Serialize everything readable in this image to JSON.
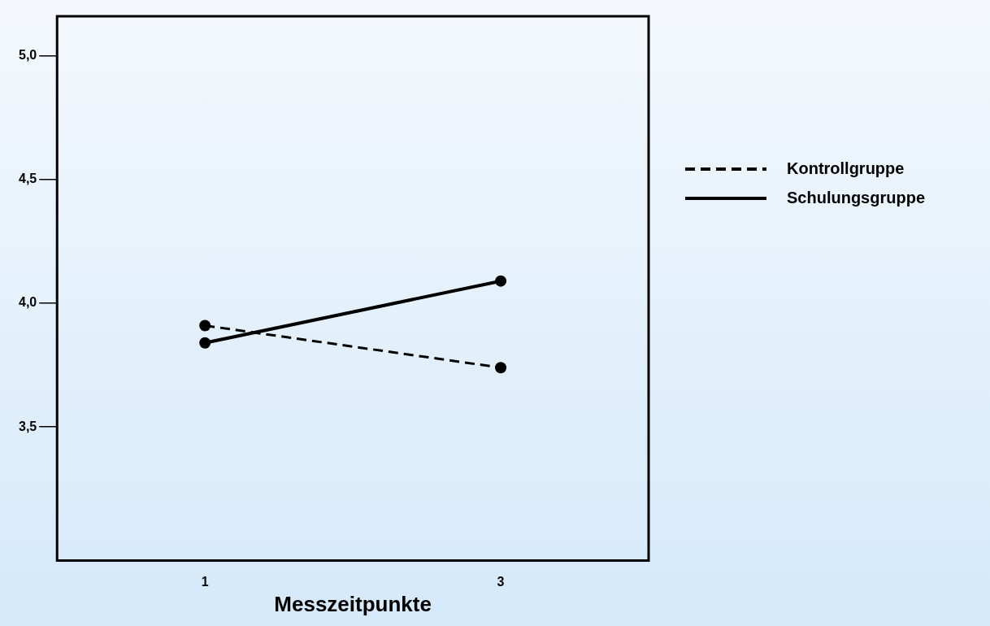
{
  "chart_data": {
    "type": "line",
    "xlabel": "Messzeitpunkte",
    "categories": [
      "1",
      "3"
    ],
    "series": [
      {
        "name": "Kontrollgruppe",
        "color": "#000000",
        "values": [
          3.91,
          3.74
        ],
        "line_style": "dashed"
      },
      {
        "name": "Schulungsgruppe",
        "color": "#000000",
        "values": [
          3.84,
          4.09
        ],
        "line_style": "solid"
      }
    ],
    "ylim": [
      2.96,
      5.16
    ],
    "yticks": [
      {
        "value": 3.5,
        "label": "3,5"
      },
      {
        "value": 4,
        "label": "4,0"
      },
      {
        "value": 4.5,
        "label": "4,5"
      },
      {
        "value": 5,
        "label": "5,0"
      }
    ],
    "grid": false,
    "legend": "right",
    "marker": "circle"
  }
}
